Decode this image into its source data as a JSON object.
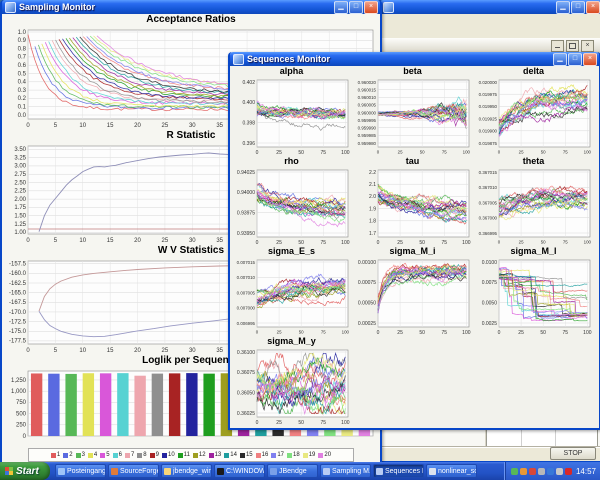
{
  "palette": [
    "#e05c5c",
    "#5a6ae0",
    "#57b857",
    "#e2e257",
    "#d957d9",
    "#57d2d2",
    "#eea6ae",
    "#8f8f8f",
    "#a82323",
    "#23239e",
    "#1f9e1f",
    "#9e9e1f",
    "#9e239e",
    "#1f9e9e",
    "#2b2b2b",
    "#f08080",
    "#8080f0",
    "#80e080",
    "#e8e880",
    "#e080e0"
  ],
  "sampling_window": {
    "title": "Sampling Monitor"
  },
  "sequences_window": {
    "title": "Sequences Monitor"
  },
  "background_window": {
    "stop_label": "STOP"
  },
  "taskbar": {
    "start": "Start",
    "clock": "14:57",
    "buttons": [
      {
        "label": "Posteingang ...",
        "icon": "mail-icon",
        "color": "#9ec4f8",
        "active": false
      },
      {
        "label": "SourceForge...",
        "icon": "globe-icon",
        "color": "#e07b39",
        "active": false
      },
      {
        "label": "jbendge_win...",
        "icon": "folder-icon",
        "color": "#f7d57a",
        "active": false
      },
      {
        "label": "C:\\WINDOW...",
        "icon": "console-icon",
        "color": "#1a1a1a",
        "active": false
      },
      {
        "label": "JBendge",
        "icon": "java-icon",
        "color": "#7aa0e8",
        "active": false
      },
      {
        "label": "Sampling M...",
        "icon": "chart-icon",
        "color": "#b8ccf4",
        "active": false
      },
      {
        "label": "Sequences M...",
        "icon": "chart-icon",
        "color": "#b8ccf4",
        "active": true
      },
      {
        "label": "nonlinear_sol...",
        "icon": "document-icon",
        "color": "#dde3ee",
        "active": false
      }
    ],
    "tray_icon_colors": [
      "#58b858",
      "#e89838",
      "#d84838",
      "#b8b8b8",
      "#3878d8",
      "#c8c8c8",
      "#d82828"
    ]
  },
  "chart_data": [
    {
      "id": "acceptance",
      "window": "sampling",
      "type": "line",
      "title": "Acceptance Ratios",
      "seed": 7,
      "x_ticks": [
        0,
        5,
        10,
        15,
        20,
        25,
        30,
        35,
        40,
        45,
        50,
        55,
        60
      ],
      "x_max": 63,
      "y_ticks": [
        "1.0",
        "0.9",
        "0.8",
        "0.7",
        "0.6",
        "0.5",
        "0.4",
        "0.3",
        "0.2",
        "0.1",
        "0.0"
      ],
      "gen": {
        "kind": "decay",
        "series": 20
      }
    },
    {
      "id": "r_statistic",
      "window": "sampling",
      "type": "line",
      "title": "R Statistic",
      "x_ticks": [
        0,
        5,
        10,
        15,
        20,
        25,
        30,
        35,
        40,
        45,
        50,
        55,
        60
      ],
      "x_max": 63,
      "y_ticks": [
        "3.50",
        "3.25",
        "3.00",
        "2.75",
        "2.50",
        "2.25",
        "2.00",
        "1.75",
        "1.50",
        "1.25",
        "1.00"
      ],
      "y_tick_vals": [
        3.5,
        3.25,
        3.0,
        2.75,
        2.5,
        2.25,
        2.0,
        1.75,
        1.5,
        1.25,
        1.0
      ],
      "y_min": 0.95,
      "y_max": 3.6,
      "hlines": [
        {
          "y": 1.1,
          "color": "#c07878"
        }
      ],
      "series": [
        {
          "color": "#8f8fb8",
          "points": [
            [
              2,
              1.02
            ],
            [
              3,
              1.5
            ],
            [
              4,
              1.82
            ],
            [
              5,
              2.02
            ],
            [
              6,
              2.22
            ],
            [
              7,
              2.42
            ],
            [
              8,
              2.58
            ],
            [
              9,
              2.7
            ],
            [
              10,
              2.83
            ],
            [
              11,
              2.9
            ],
            [
              12,
              2.97
            ],
            [
              13,
              2.98
            ],
            [
              14,
              2.97
            ],
            [
              15,
              3.0
            ],
            [
              16,
              3.02
            ],
            [
              18,
              3.1
            ],
            [
              20,
              3.16
            ],
            [
              22,
              3.22
            ],
            [
              24,
              3.27
            ],
            [
              26,
              3.3
            ],
            [
              28,
              3.33
            ],
            [
              30,
              3.35
            ],
            [
              32,
              3.38
            ],
            [
              33,
              3.39
            ],
            [
              35,
              3.36
            ],
            [
              37,
              3.34
            ],
            [
              39,
              3.35
            ],
            [
              41,
              3.33
            ],
            [
              43,
              3.31
            ],
            [
              45,
              3.3
            ],
            [
              47,
              3.29
            ],
            [
              49,
              3.28
            ],
            [
              51,
              3.26
            ],
            [
              53,
              3.25
            ],
            [
              55,
              3.24
            ],
            [
              57,
              3.23
            ],
            [
              59,
              3.22
            ],
            [
              61,
              3.2
            ],
            [
              63,
              3.19
            ]
          ]
        }
      ]
    },
    {
      "id": "wv_statistics",
      "window": "sampling",
      "type": "line",
      "title": "W V Statistics",
      "x_ticks": [
        0,
        5,
        10,
        15,
        20,
        25,
        30,
        35,
        40,
        45,
        50,
        55,
        60
      ],
      "x_max": 63,
      "y_ticks": [
        "-157.5",
        "-160.0",
        "-162.5",
        "-165.0",
        "-167.5",
        "-170.0",
        "-172.5",
        "-175.0",
        "-177.5"
      ],
      "y_tick_vals": [
        -157.5,
        -160.0,
        -162.5,
        -165.0,
        -167.5,
        -170.0,
        -172.5,
        -175.0,
        -177.5
      ],
      "y_min": -178.3,
      "y_max": -156.8,
      "series": [
        {
          "color": "#c49898",
          "points": [
            [
              2,
              -169.8
            ],
            [
              3,
              -166
            ],
            [
              4,
              -164
            ],
            [
              5,
              -162.8
            ],
            [
              6,
              -162
            ],
            [
              8,
              -161
            ],
            [
              10,
              -160.4
            ],
            [
              12,
              -160
            ],
            [
              15,
              -159.6
            ],
            [
              18,
              -159.2
            ],
            [
              20,
              -159
            ],
            [
              25,
              -158.6
            ],
            [
              30,
              -158.3
            ],
            [
              35,
              -158.1
            ],
            [
              40,
              -158.0
            ],
            [
              45,
              -157.9
            ],
            [
              50,
              -157.85
            ],
            [
              55,
              -157.8
            ],
            [
              60,
              -157.75
            ],
            [
              63,
              -157.7
            ]
          ]
        },
        {
          "color": "#9898c4",
          "points": [
            [
              2,
              -169.8
            ],
            [
              3,
              -172
            ],
            [
              4,
              -173.5
            ],
            [
              5,
              -174.3
            ],
            [
              6,
              -175
            ],
            [
              8,
              -175.8
            ],
            [
              10,
              -176.2
            ],
            [
              12,
              -176.4
            ],
            [
              14,
              -176.3
            ],
            [
              16,
              -175.9
            ],
            [
              18,
              -175.4
            ],
            [
              20,
              -174.9
            ],
            [
              23,
              -174.3
            ],
            [
              26,
              -173.6
            ],
            [
              30,
              -172.9
            ],
            [
              34,
              -172.3
            ],
            [
              38,
              -171.6
            ],
            [
              42,
              -171
            ],
            [
              46,
              -170.5
            ],
            [
              50,
              -170
            ],
            [
              54,
              -169.6
            ],
            [
              58,
              -169.2
            ],
            [
              63,
              -168.7
            ]
          ]
        }
      ]
    },
    {
      "id": "loglik",
      "window": "sampling",
      "type": "bar",
      "title": "Loglik per Sequence",
      "y_ticks": [
        "1,250",
        "1,000",
        "750",
        "500",
        "250",
        "0"
      ],
      "y_tick_vals": [
        1250,
        1000,
        750,
        500,
        250,
        0
      ],
      "y_min": 0,
      "y_max": 1450,
      "values": [
        1395,
        1390,
        1385,
        1400,
        1398,
        1402,
        1345,
        1392,
        1397,
        1403,
        1391,
        1399,
        1396,
        1394,
        1388,
        1397,
        1401,
        1393,
        1398,
        1400
      ],
      "legend_labels": [
        "1",
        "2",
        "3",
        "4",
        "5",
        "6",
        "7",
        "8",
        "9",
        "10",
        "11",
        "12",
        "13",
        "14",
        "15",
        "16",
        "17",
        "18",
        "19",
        "20"
      ]
    },
    {
      "id": "alpha",
      "window": "sequences",
      "type": "line",
      "title": "alpha",
      "seed": 21,
      "x_ticks": [
        0,
        25,
        50,
        75,
        100
      ],
      "x_max": 103,
      "y_ticks": [
        "0.402",
        "0.400",
        "0.398",
        "0.396"
      ],
      "gen": {
        "kind": "flat",
        "series": 20
      }
    },
    {
      "id": "beta",
      "window": "sequences",
      "type": "line",
      "title": "beta",
      "seed": 22,
      "tick_font": 4.4,
      "x_ticks": [
        0,
        25,
        50,
        75,
        100
      ],
      "x_max": 103,
      "y_ticks": [
        "0.960020",
        "0.960015",
        "0.960010",
        "0.960005",
        "0.960000",
        "0.959995",
        "0.959990",
        "0.959985",
        "0.959980"
      ],
      "gen": {
        "kind": "fan",
        "series": 20
      }
    },
    {
      "id": "delta",
      "window": "sequences",
      "type": "line",
      "title": "delta",
      "seed": 23,
      "tick_font": 4.4,
      "x_ticks": [
        0,
        25,
        50,
        75,
        100
      ],
      "x_max": 103,
      "y_ticks": [
        "0.020000",
        "0.019975",
        "0.019950",
        "0.019925",
        "0.019900",
        "0.019875"
      ],
      "gen": {
        "kind": "rise",
        "series": 20
      }
    },
    {
      "id": "rho",
      "window": "sequences",
      "type": "line",
      "title": "rho",
      "seed": 24,
      "x_ticks": [
        0,
        25,
        50,
        75,
        100
      ],
      "x_max": 103,
      "y_ticks": [
        "0.94025",
        "0.94000",
        "0.93975",
        "0.93950"
      ],
      "gen": {
        "kind": "slightfall",
        "series": 20
      }
    },
    {
      "id": "tau",
      "window": "sequences",
      "type": "line",
      "title": "tau",
      "seed": 25,
      "x_ticks": [
        0,
        25,
        50,
        75,
        100
      ],
      "x_max": 103,
      "y_ticks": [
        "2.2",
        "2.1",
        "2.0",
        "1.9",
        "1.8",
        "1.7"
      ],
      "gen": {
        "kind": "slightfall",
        "series": 20
      }
    },
    {
      "id": "theta",
      "window": "sequences",
      "type": "line",
      "title": "theta",
      "seed": 26,
      "tick_font": 4.4,
      "x_ticks": [
        0,
        25,
        50,
        75,
        100
      ],
      "x_max": 103,
      "y_ticks": [
        "0.367015",
        "0.367010",
        "0.367005",
        "0.367000",
        "0.366995"
      ],
      "gen": {
        "kind": "slightrise",
        "series": 20
      }
    },
    {
      "id": "sigma_E_s",
      "window": "sequences",
      "type": "line",
      "title": "sigma_E_s",
      "seed": 27,
      "tick_font": 4.4,
      "x_ticks": [
        0,
        25,
        50,
        75,
        100
      ],
      "x_max": 103,
      "y_ticks": [
        "0.007015",
        "0.007010",
        "0.007005",
        "0.007000",
        "0.006995"
      ],
      "gen": {
        "kind": "slightrise",
        "series": 20
      }
    },
    {
      "id": "sigma_M_i",
      "window": "sequences",
      "type": "line",
      "title": "sigma_M_i",
      "seed": 28,
      "x_ticks": [
        0,
        25,
        50,
        75,
        100
      ],
      "x_max": 103,
      "y_ticks": [
        "0.00100",
        "0.00075",
        "0.00050",
        "0.00025"
      ],
      "gen": {
        "kind": "riseplateau",
        "series": 20
      }
    },
    {
      "id": "sigma_M_l",
      "window": "sequences",
      "type": "line",
      "title": "sigma_M_l",
      "seed": 29,
      "x_ticks": [
        0,
        25,
        50,
        75,
        100
      ],
      "x_max": 103,
      "y_ticks": [
        "0.0100",
        "0.0075",
        "0.0050",
        "0.0025"
      ],
      "gen": {
        "kind": "stair",
        "series": 20
      }
    },
    {
      "id": "sigma_M_y",
      "window": "sequences",
      "type": "line",
      "title": "sigma_M_y",
      "seed": 30,
      "x_ticks": [
        0,
        25,
        50,
        75,
        100
      ],
      "x_max": 103,
      "y_ticks": [
        "0.36100",
        "0.36075",
        "0.36050",
        "0.36025"
      ],
      "gen": {
        "kind": "wild",
        "series": 20
      }
    }
  ]
}
